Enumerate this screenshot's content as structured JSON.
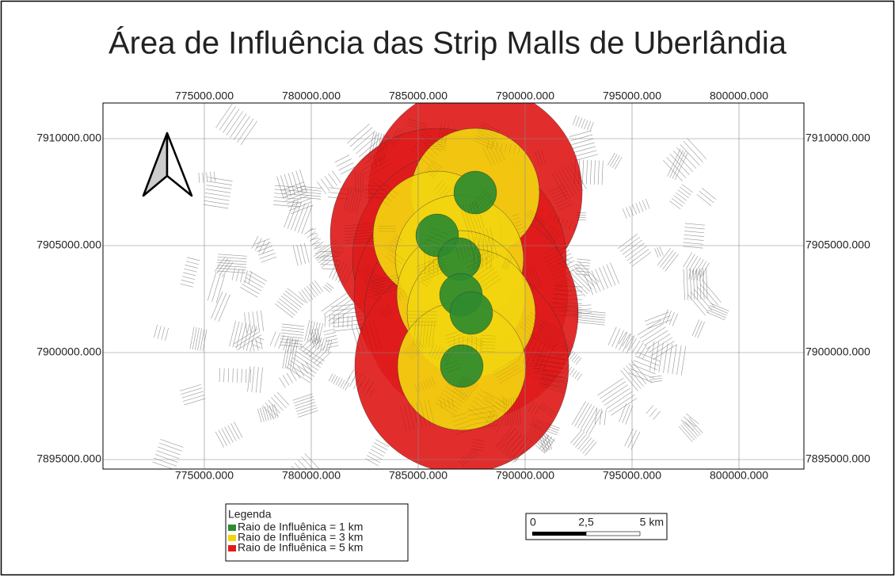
{
  "title": "Área de Influência das Strip Malls de Uberlândia",
  "map": {
    "xticks": [
      {
        "value": 775000,
        "label": "775000.000"
      },
      {
        "value": 780000,
        "label": "780000.000"
      },
      {
        "value": 785000,
        "label": "785000.000"
      },
      {
        "value": 790000,
        "label": "790000.000"
      },
      {
        "value": 795000,
        "label": "795000.000"
      },
      {
        "value": 800000,
        "label": "800000.000"
      }
    ],
    "yticks": [
      {
        "value": 7910000,
        "label": "7910000.000"
      },
      {
        "value": 7905000,
        "label": "7905000.000"
      },
      {
        "value": 7900000,
        "label": "7900000.000"
      },
      {
        "value": 7895000,
        "label": "7895000.000"
      }
    ]
  },
  "legend": {
    "title": "Legenda",
    "items": [
      {
        "label": "Raio de Influênica = 1 km",
        "color": "#2e8b2e"
      },
      {
        "label": "Raio de Influênica = 3 km",
        "color": "#f2d40f"
      },
      {
        "label": "Raio de Influênica = 5 km",
        "color": "#e01b1b"
      }
    ]
  },
  "scalebar": {
    "labels": [
      "0",
      "2,5",
      "5 km"
    ]
  }
}
